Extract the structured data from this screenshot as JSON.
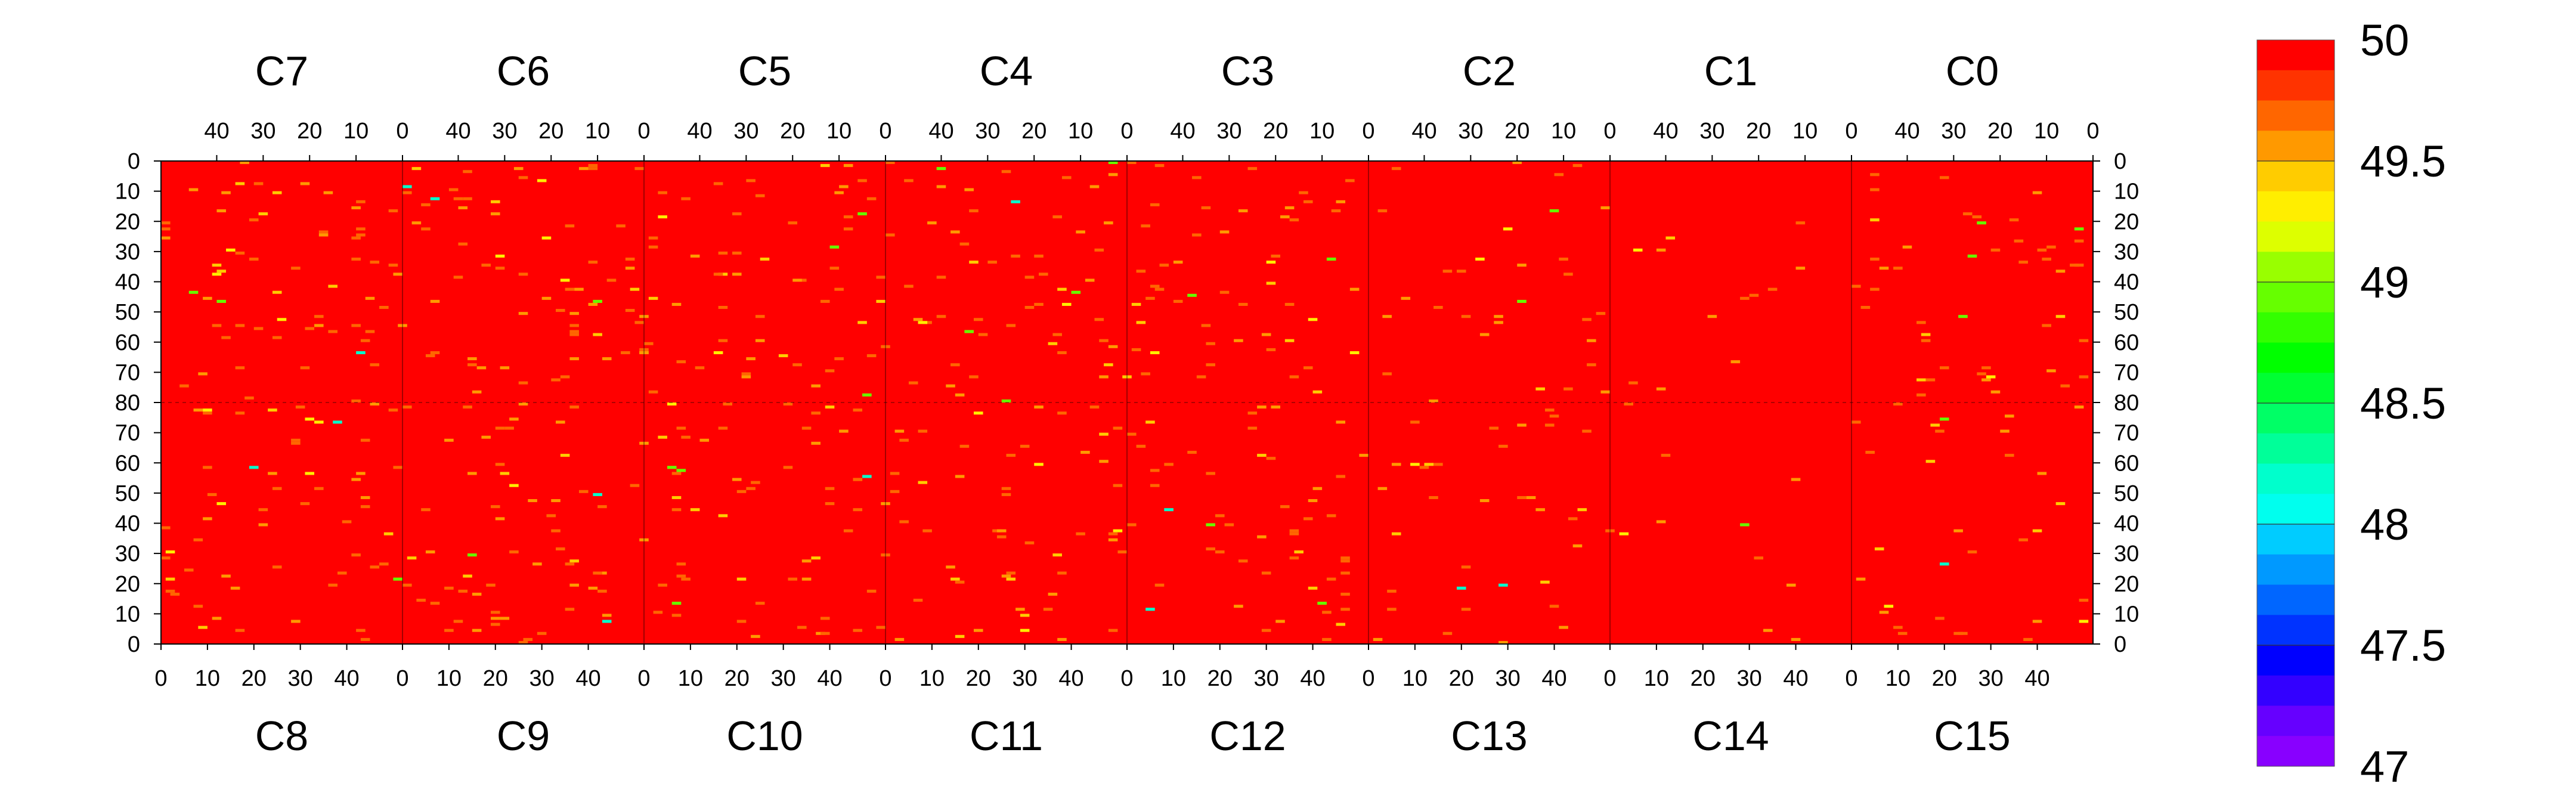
{
  "chart_data": {
    "type": "heatmap",
    "title": "",
    "background_value": 50,
    "chips_top": [
      "C7",
      "C6",
      "C5",
      "C4",
      "C3",
      "C2",
      "C1",
      "C0"
    ],
    "chips_bottom": [
      "C8",
      "C9",
      "C10",
      "C11",
      "C12",
      "C13",
      "C14",
      "C15"
    ],
    "chip_columns": 52,
    "rows_per_half": 80,
    "top_axis_ticks": [
      "40",
      "30",
      "20",
      "10",
      "0"
    ],
    "bottom_axis_ticks": [
      "0",
      "10",
      "20",
      "30",
      "40"
    ],
    "left_axis_ticks": [
      "0",
      "10",
      "20",
      "30",
      "40",
      "50",
      "60",
      "70",
      "80",
      "70",
      "60",
      "50",
      "40",
      "30",
      "20",
      "10",
      "0"
    ],
    "right_axis_ticks": [
      "0",
      "10",
      "20",
      "30",
      "40",
      "50",
      "60",
      "70",
      "80",
      "70",
      "60",
      "50",
      "40",
      "30",
      "20",
      "10",
      "0"
    ],
    "colorbar": {
      "min": 47,
      "max": 50,
      "labels": [
        "50",
        "49.5",
        "49",
        "48.5",
        "48",
        "47.5",
        "47"
      ],
      "colors": [
        "#ff0000",
        "#ff3300",
        "#ff6600",
        "#ff9900",
        "#ffcc00",
        "#ffee00",
        "#ddff00",
        "#99ff00",
        "#66ff00",
        "#33ff00",
        "#00ff00",
        "#00ff33",
        "#00ff66",
        "#00ff99",
        "#00ffcc",
        "#00ffee",
        "#00ccff",
        "#0099ff",
        "#0066ff",
        "#0033ff",
        "#0000ff",
        "#3300ff",
        "#6600ff",
        "#8800ff"
      ]
    },
    "density_by_chip": {
      "C7": 0.06,
      "C6": 0.065,
      "C5": 0.055,
      "C4": 0.055,
      "C3": 0.05,
      "C2": 0.03,
      "C1": 0.012,
      "C0": 0.045,
      "C8": 0.055,
      "C9": 0.06,
      "C10": 0.055,
      "C11": 0.05,
      "C12": 0.05,
      "C13": 0.035,
      "C14": 0.01,
      "C15": 0.03
    },
    "outlier_values": [
      49.7,
      49.6,
      49.4,
      49.3,
      49.1,
      49.0,
      48.9,
      48.2
    ]
  }
}
